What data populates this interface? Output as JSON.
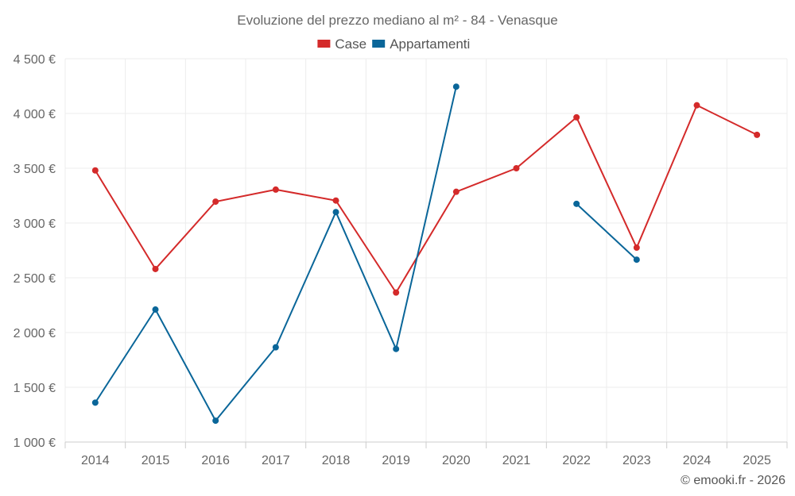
{
  "chart_data": {
    "type": "line",
    "title": "Evoluzione del prezzo mediano al m² - 84 - Venasque",
    "xlabel": "",
    "ylabel": "",
    "categories": [
      "2014",
      "2015",
      "2016",
      "2017",
      "2018",
      "2019",
      "2020",
      "2021",
      "2022",
      "2023",
      "2024",
      "2025"
    ],
    "ylim": [
      1000,
      4500
    ],
    "yticks": [
      1000,
      1500,
      2000,
      2500,
      3000,
      3500,
      4000,
      4500
    ],
    "ytick_labels": [
      "1 000 €",
      "1 500 €",
      "2 000 €",
      "2 500 €",
      "3 000 €",
      "3 500 €",
      "4 000 €",
      "4 500 €"
    ],
    "grid": true,
    "legend_position": "top-center",
    "series": [
      {
        "name": "Case",
        "color": "#d42a2a",
        "values": [
          3480,
          2580,
          3195,
          3305,
          3205,
          2365,
          3285,
          3500,
          3965,
          2775,
          4075,
          3805
        ]
      },
      {
        "name": "Appartamenti",
        "color": "#0a6699",
        "values": [
          1360,
          2210,
          1195,
          1865,
          3100,
          1850,
          4245,
          null,
          3175,
          2665,
          null,
          null
        ]
      }
    ]
  },
  "credit": "© emooki.fr - 2026"
}
